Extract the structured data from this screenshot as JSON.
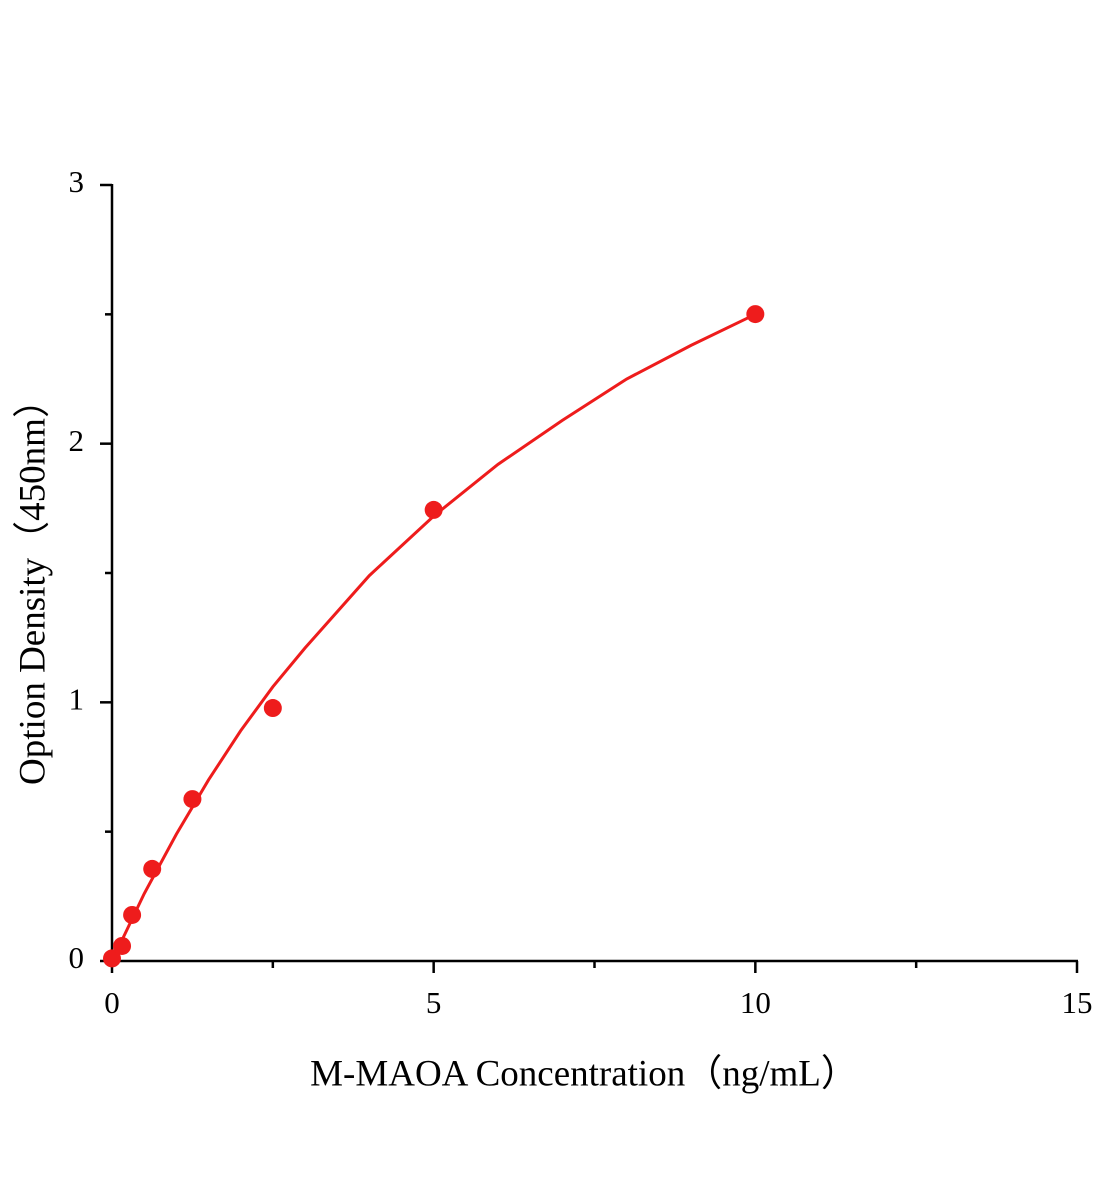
{
  "chart_data": {
    "type": "scatter",
    "x_label": "M-MAOA Concentration（ng/mL）",
    "y_label": "Option Density（450nm）",
    "xlim": [
      0,
      15
    ],
    "xticks": [
      0,
      5,
      10,
      15
    ],
    "xminor": [
      2.5,
      7.5,
      12.5
    ],
    "ylim": [
      0,
      3
    ],
    "yticks": [
      0,
      1,
      2,
      3
    ],
    "yminor": [
      0.5,
      1.5,
      2.5
    ],
    "series": [
      {
        "mode": "markers",
        "color": "#ee1c1c",
        "x": [
          0,
          0.156,
          0.3125,
          0.625,
          1.25,
          2.5,
          5,
          10
        ],
        "values": [
          0.01,
          0.058,
          0.178,
          0.356,
          0.626,
          0.978,
          1.744,
          2.501
        ]
      },
      {
        "mode": "line",
        "color": "#ee1c1c",
        "x": [
          0,
          0.5,
          1,
          1.5,
          2,
          2.5,
          3,
          4,
          5,
          6,
          7,
          8,
          9,
          10
        ],
        "values": [
          0,
          0.26,
          0.49,
          0.7,
          0.89,
          1.06,
          1.21,
          1.49,
          1.72,
          1.92,
          2.09,
          2.25,
          2.38,
          2.5
        ]
      }
    ]
  }
}
